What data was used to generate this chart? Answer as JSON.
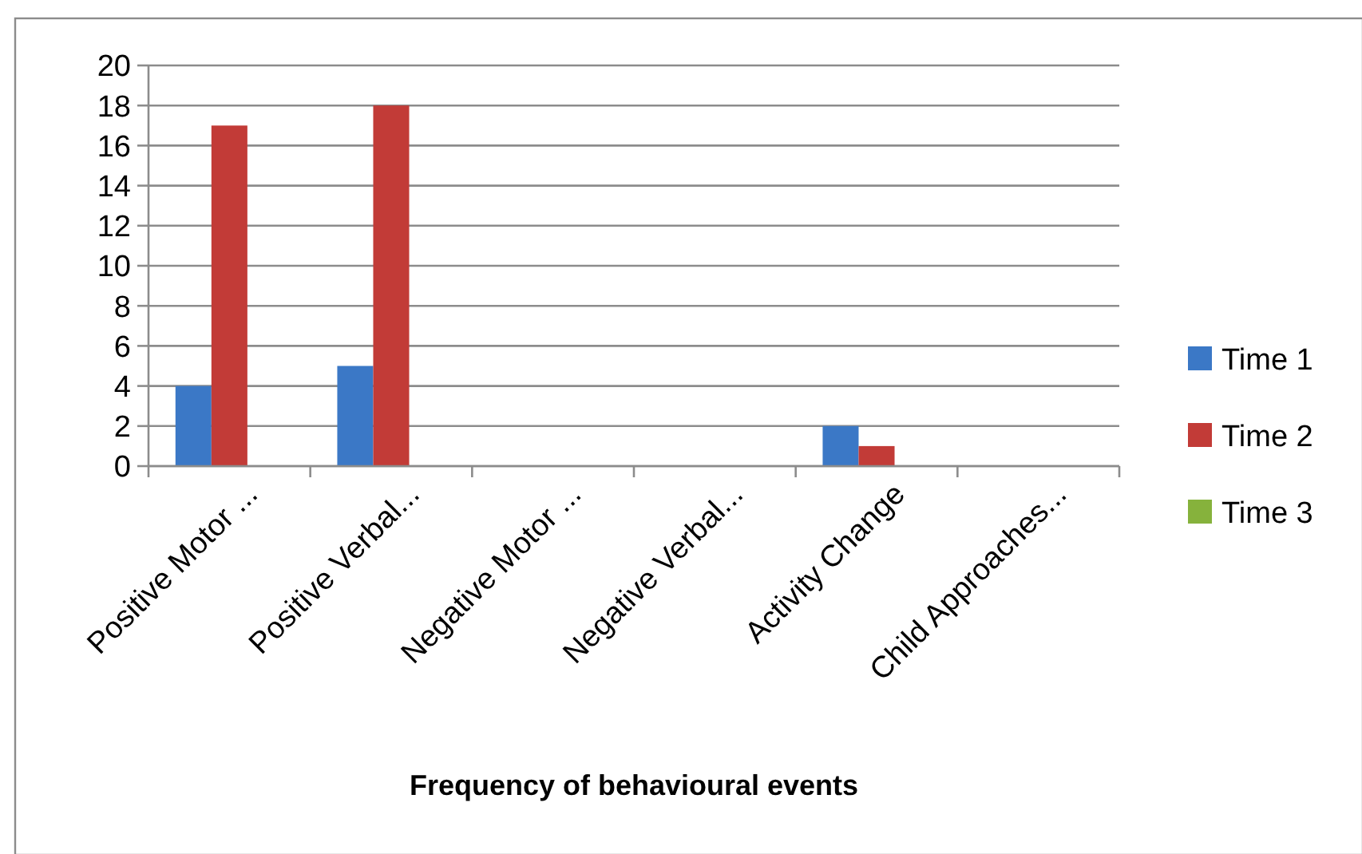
{
  "chart_data": {
    "type": "bar",
    "xlabel": "Frequency of behavioural events",
    "categories": [
      "Positive Motor ...",
      "Positive Verbal...",
      "Negative Motor ...",
      "Negative Verbal...",
      "Activity Change",
      "Child Approaches..."
    ],
    "series": [
      {
        "name": "Time 1",
        "color": "#3b78c6",
        "values": [
          4,
          5,
          0,
          0,
          2,
          0
        ]
      },
      {
        "name": "Time 2",
        "color": "#c23b37",
        "values": [
          17,
          18,
          0,
          0,
          1,
          0
        ]
      },
      {
        "name": "Time 3",
        "color": "#86b23c",
        "values": [
          0,
          0,
          0,
          0,
          0,
          0
        ]
      }
    ],
    "ylim": [
      0,
      20
    ],
    "yticks": [
      0,
      2,
      4,
      6,
      8,
      10,
      12,
      14,
      16,
      18,
      20
    ],
    "grid": "y",
    "legend": "right"
  }
}
